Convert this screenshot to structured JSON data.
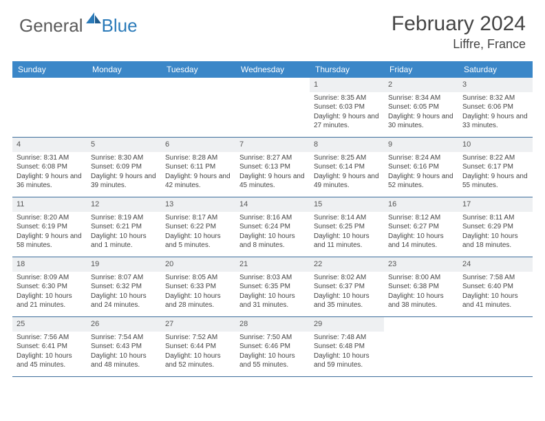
{
  "logo": {
    "general": "General",
    "blue": "Blue"
  },
  "title": "February 2024",
  "location": "Liffre, France",
  "colors": {
    "header_bg": "#3b87c8",
    "header_text": "#ffffff",
    "daynum_bg": "#eef0f2",
    "row_border": "#3b6c9a",
    "body_text": "#444444",
    "logo_blue": "#2a7ab9",
    "logo_grey": "#5a5a5a"
  },
  "dayHeaders": [
    "Sunday",
    "Monday",
    "Tuesday",
    "Wednesday",
    "Thursday",
    "Friday",
    "Saturday"
  ],
  "weeks": [
    [
      {
        "n": "",
        "lines": []
      },
      {
        "n": "",
        "lines": []
      },
      {
        "n": "",
        "lines": []
      },
      {
        "n": "",
        "lines": []
      },
      {
        "n": "1",
        "lines": [
          "Sunrise: 8:35 AM",
          "Sunset: 6:03 PM",
          "Daylight: 9 hours and 27 minutes."
        ]
      },
      {
        "n": "2",
        "lines": [
          "Sunrise: 8:34 AM",
          "Sunset: 6:05 PM",
          "Daylight: 9 hours and 30 minutes."
        ]
      },
      {
        "n": "3",
        "lines": [
          "Sunrise: 8:32 AM",
          "Sunset: 6:06 PM",
          "Daylight: 9 hours and 33 minutes."
        ]
      }
    ],
    [
      {
        "n": "4",
        "lines": [
          "Sunrise: 8:31 AM",
          "Sunset: 6:08 PM",
          "Daylight: 9 hours and 36 minutes."
        ]
      },
      {
        "n": "5",
        "lines": [
          "Sunrise: 8:30 AM",
          "Sunset: 6:09 PM",
          "Daylight: 9 hours and 39 minutes."
        ]
      },
      {
        "n": "6",
        "lines": [
          "Sunrise: 8:28 AM",
          "Sunset: 6:11 PM",
          "Daylight: 9 hours and 42 minutes."
        ]
      },
      {
        "n": "7",
        "lines": [
          "Sunrise: 8:27 AM",
          "Sunset: 6:13 PM",
          "Daylight: 9 hours and 45 minutes."
        ]
      },
      {
        "n": "8",
        "lines": [
          "Sunrise: 8:25 AM",
          "Sunset: 6:14 PM",
          "Daylight: 9 hours and 49 minutes."
        ]
      },
      {
        "n": "9",
        "lines": [
          "Sunrise: 8:24 AM",
          "Sunset: 6:16 PM",
          "Daylight: 9 hours and 52 minutes."
        ]
      },
      {
        "n": "10",
        "lines": [
          "Sunrise: 8:22 AM",
          "Sunset: 6:17 PM",
          "Daylight: 9 hours and 55 minutes."
        ]
      }
    ],
    [
      {
        "n": "11",
        "lines": [
          "Sunrise: 8:20 AM",
          "Sunset: 6:19 PM",
          "Daylight: 9 hours and 58 minutes."
        ]
      },
      {
        "n": "12",
        "lines": [
          "Sunrise: 8:19 AM",
          "Sunset: 6:21 PM",
          "Daylight: 10 hours and 1 minute."
        ]
      },
      {
        "n": "13",
        "lines": [
          "Sunrise: 8:17 AM",
          "Sunset: 6:22 PM",
          "Daylight: 10 hours and 5 minutes."
        ]
      },
      {
        "n": "14",
        "lines": [
          "Sunrise: 8:16 AM",
          "Sunset: 6:24 PM",
          "Daylight: 10 hours and 8 minutes."
        ]
      },
      {
        "n": "15",
        "lines": [
          "Sunrise: 8:14 AM",
          "Sunset: 6:25 PM",
          "Daylight: 10 hours and 11 minutes."
        ]
      },
      {
        "n": "16",
        "lines": [
          "Sunrise: 8:12 AM",
          "Sunset: 6:27 PM",
          "Daylight: 10 hours and 14 minutes."
        ]
      },
      {
        "n": "17",
        "lines": [
          "Sunrise: 8:11 AM",
          "Sunset: 6:29 PM",
          "Daylight: 10 hours and 18 minutes."
        ]
      }
    ],
    [
      {
        "n": "18",
        "lines": [
          "Sunrise: 8:09 AM",
          "Sunset: 6:30 PM",
          "Daylight: 10 hours and 21 minutes."
        ]
      },
      {
        "n": "19",
        "lines": [
          "Sunrise: 8:07 AM",
          "Sunset: 6:32 PM",
          "Daylight: 10 hours and 24 minutes."
        ]
      },
      {
        "n": "20",
        "lines": [
          "Sunrise: 8:05 AM",
          "Sunset: 6:33 PM",
          "Daylight: 10 hours and 28 minutes."
        ]
      },
      {
        "n": "21",
        "lines": [
          "Sunrise: 8:03 AM",
          "Sunset: 6:35 PM",
          "Daylight: 10 hours and 31 minutes."
        ]
      },
      {
        "n": "22",
        "lines": [
          "Sunrise: 8:02 AM",
          "Sunset: 6:37 PM",
          "Daylight: 10 hours and 35 minutes."
        ]
      },
      {
        "n": "23",
        "lines": [
          "Sunrise: 8:00 AM",
          "Sunset: 6:38 PM",
          "Daylight: 10 hours and 38 minutes."
        ]
      },
      {
        "n": "24",
        "lines": [
          "Sunrise: 7:58 AM",
          "Sunset: 6:40 PM",
          "Daylight: 10 hours and 41 minutes."
        ]
      }
    ],
    [
      {
        "n": "25",
        "lines": [
          "Sunrise: 7:56 AM",
          "Sunset: 6:41 PM",
          "Daylight: 10 hours and 45 minutes."
        ]
      },
      {
        "n": "26",
        "lines": [
          "Sunrise: 7:54 AM",
          "Sunset: 6:43 PM",
          "Daylight: 10 hours and 48 minutes."
        ]
      },
      {
        "n": "27",
        "lines": [
          "Sunrise: 7:52 AM",
          "Sunset: 6:44 PM",
          "Daylight: 10 hours and 52 minutes."
        ]
      },
      {
        "n": "28",
        "lines": [
          "Sunrise: 7:50 AM",
          "Sunset: 6:46 PM",
          "Daylight: 10 hours and 55 minutes."
        ]
      },
      {
        "n": "29",
        "lines": [
          "Sunrise: 7:48 AM",
          "Sunset: 6:48 PM",
          "Daylight: 10 hours and 59 minutes."
        ]
      },
      {
        "n": "",
        "lines": []
      },
      {
        "n": "",
        "lines": []
      }
    ]
  ]
}
